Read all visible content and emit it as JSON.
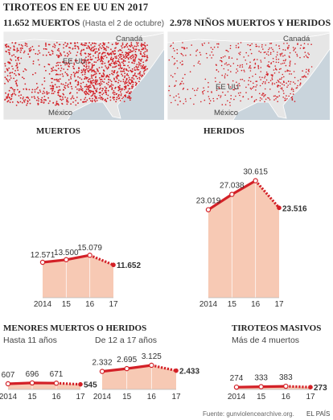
{
  "title": "TIROTEOS EN EE UU EN 2017",
  "maps": [
    {
      "title": "11.652 MUERTOS",
      "subtitle": "(Hasta el 2 de octubre)",
      "labels": {
        "canada": "Canadá",
        "usa": "EE UU",
        "mexico": "México"
      }
    },
    {
      "title": "2.978 NIÑOS MUERTOS Y HERIDOS",
      "subtitle": "",
      "labels": {
        "canada": "Canadá",
        "usa": "EE UU",
        "mexico": "México"
      }
    }
  ],
  "colors": {
    "area": "#f7c9b4",
    "line": "#d32027",
    "dot": "#d32027",
    "map_land": "#e6e6e6",
    "map_water": "#c9d4dc",
    "map_border": "#ffffff"
  },
  "chart_data": [
    {
      "id": "muertos",
      "type": "line",
      "title": "MUERTOS",
      "subtitle": "",
      "x": [
        "2014",
        "15",
        "16",
        "17"
      ],
      "values": [
        12571,
        13500,
        15079,
        11652
      ],
      "labels": [
        "12.571",
        "13.500",
        "15.079",
        "11.652"
      ],
      "last_segment": "dotted"
    },
    {
      "id": "heridos",
      "type": "line",
      "title": "HERIDOS",
      "subtitle": "",
      "x": [
        "2014",
        "15",
        "16",
        "17"
      ],
      "values": [
        23019,
        27038,
        30615,
        23516
      ],
      "labels": [
        "23.019",
        "27.038",
        "30.615",
        "23.516"
      ],
      "last_segment": "dotted"
    },
    {
      "id": "menores-11",
      "type": "line",
      "title": "MENORES MUERTOS O HERIDOS",
      "subtitle": "Hasta 11 años",
      "x": [
        "2014",
        "15",
        "16",
        "17"
      ],
      "values": [
        607,
        696,
        671,
        545
      ],
      "labels": [
        "607",
        "696",
        "671",
        "545"
      ],
      "last_segment": "dotted"
    },
    {
      "id": "menores-12-17",
      "type": "line",
      "title": "",
      "subtitle": "De 12 a 17 años",
      "x": [
        "2014",
        "15",
        "16",
        "17"
      ],
      "values": [
        2332,
        2695,
        3125,
        2433
      ],
      "labels": [
        "2.332",
        "2.695",
        "3.125",
        "2.433"
      ],
      "last_segment": "dotted"
    },
    {
      "id": "masivos",
      "type": "line",
      "title": "TIROTEOS MASIVOS",
      "subtitle": "Más de 4 muertos",
      "x": [
        "2014",
        "15",
        "16",
        "17"
      ],
      "values": [
        274,
        333,
        383,
        273
      ],
      "labels": [
        "274",
        "333",
        "383",
        "273"
      ],
      "last_segment": "dotted"
    }
  ],
  "footer": {
    "source": "Fuente: gunviolencearchive.org.",
    "brand": "EL PAÍS"
  }
}
